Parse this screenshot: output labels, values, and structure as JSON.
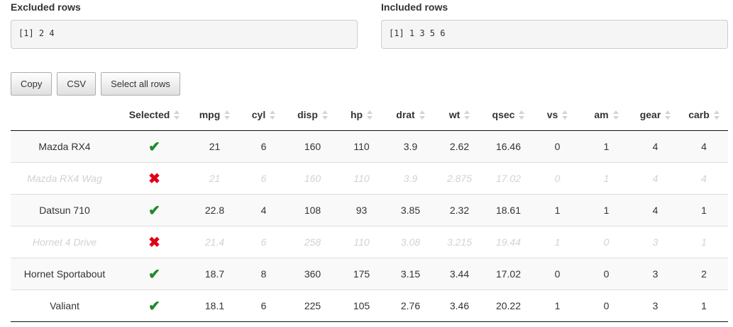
{
  "excluded": {
    "label": "Excluded rows",
    "output": "[1] 2 4"
  },
  "included": {
    "label": "Included rows",
    "output": "[1] 1 3 5 6"
  },
  "buttons": {
    "copy": "Copy",
    "csv": "CSV",
    "select_all": "Select all rows"
  },
  "table": {
    "columns": [
      "",
      "Selected",
      "mpg",
      "cyl",
      "disp",
      "hp",
      "drat",
      "wt",
      "qsec",
      "vs",
      "am",
      "gear",
      "carb"
    ],
    "rows": [
      {
        "name": "Mazda RX4",
        "selected": true,
        "values": [
          "21",
          "6",
          "160",
          "110",
          "3.9",
          "2.62",
          "16.46",
          "0",
          "1",
          "4",
          "4"
        ]
      },
      {
        "name": "Mazda RX4 Wag",
        "selected": false,
        "values": [
          "21",
          "6",
          "160",
          "110",
          "3.9",
          "2.875",
          "17.02",
          "0",
          "1",
          "4",
          "4"
        ]
      },
      {
        "name": "Datsun 710",
        "selected": true,
        "values": [
          "22.8",
          "4",
          "108",
          "93",
          "3.85",
          "2.32",
          "18.61",
          "1",
          "1",
          "4",
          "1"
        ]
      },
      {
        "name": "Hornet 4 Drive",
        "selected": false,
        "values": [
          "21.4",
          "6",
          "258",
          "110",
          "3.08",
          "3.215",
          "19.44",
          "1",
          "0",
          "3",
          "1"
        ]
      },
      {
        "name": "Hornet Sportabout",
        "selected": true,
        "values": [
          "18.7",
          "8",
          "360",
          "175",
          "3.15",
          "3.44",
          "17.02",
          "0",
          "0",
          "3",
          "2"
        ]
      },
      {
        "name": "Valiant",
        "selected": true,
        "values": [
          "18.1",
          "6",
          "225",
          "105",
          "2.76",
          "3.46",
          "20.22",
          "1",
          "0",
          "3",
          "1"
        ]
      }
    ]
  },
  "icons": {
    "selected": "checkmark-icon",
    "excluded": "cross-icon"
  },
  "colors": {
    "check": "#1e8a2d",
    "cross": "#e0001a",
    "excluded_text": "#d2d2d2"
  }
}
